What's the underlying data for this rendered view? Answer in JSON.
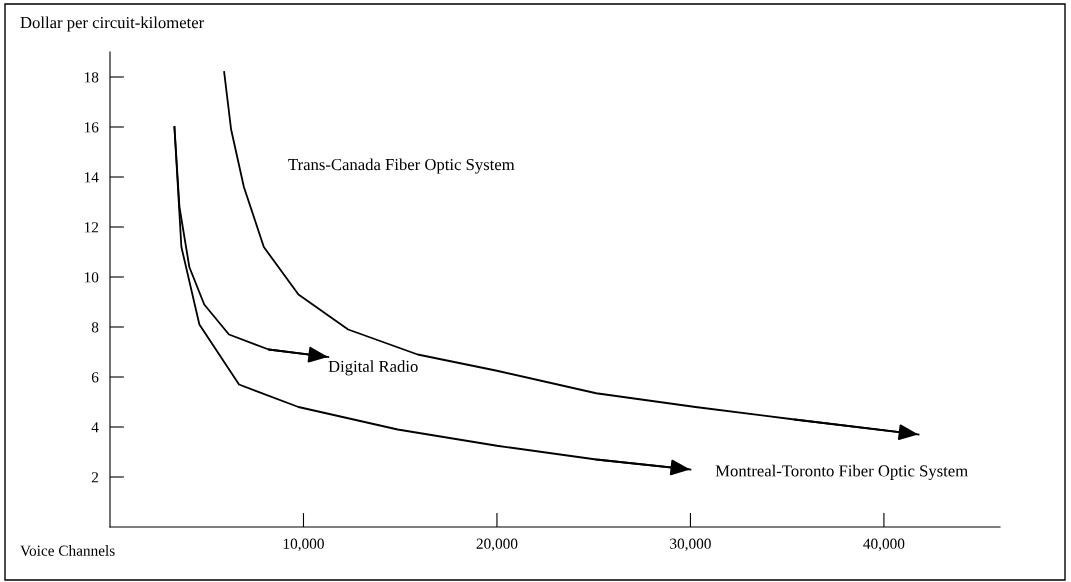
{
  "chart_data": {
    "type": "line",
    "ylabel": "Dollar per circuit-kilometer",
    "xlabel": "Voice Channels",
    "xlim": [
      0,
      46000
    ],
    "xticks": [
      {
        "value": 10000,
        "label": "10,000"
      },
      {
        "value": 20000,
        "label": "20,000"
      },
      {
        "value": 30000,
        "label": "30,000"
      },
      {
        "value": 40000,
        "label": "40,000"
      }
    ],
    "ylim": [
      0,
      19
    ],
    "yticks": [
      2,
      4,
      6,
      8,
      10,
      12,
      14,
      16,
      18
    ],
    "grid": false,
    "marker": "none",
    "line_style": "solid",
    "series": [
      {
        "name": "Trans-Canada Fiber Optic System",
        "color": "#000000",
        "x": [
          5900,
          6260,
          6920,
          7950,
          9740,
          12310,
          15900,
          20000,
          25130,
          30260,
          35380,
          41790
        ],
        "values": [
          18.2,
          15.9,
          13.6,
          11.2,
          9.3,
          7.9,
          6.9,
          6.25,
          5.35,
          4.8,
          4.3,
          3.7
        ]
      },
      {
        "name": "Digital Radio",
        "color": "#000000",
        "x": [
          3330,
          3590,
          4100,
          4870,
          6150,
          8200,
          11280
        ],
        "values": [
          16.0,
          12.8,
          10.4,
          8.9,
          7.7,
          7.1,
          6.8
        ]
      },
      {
        "name": "Montreal-Toronto Fiber Optic System",
        "color": "#000000",
        "x": [
          3330,
          3690,
          4620,
          6670,
          9740,
          14870,
          20000,
          25130,
          30000
        ],
        "values": [
          16.0,
          11.2,
          8.1,
          5.7,
          4.8,
          3.9,
          3.25,
          2.7,
          2.3
        ]
      }
    ]
  }
}
